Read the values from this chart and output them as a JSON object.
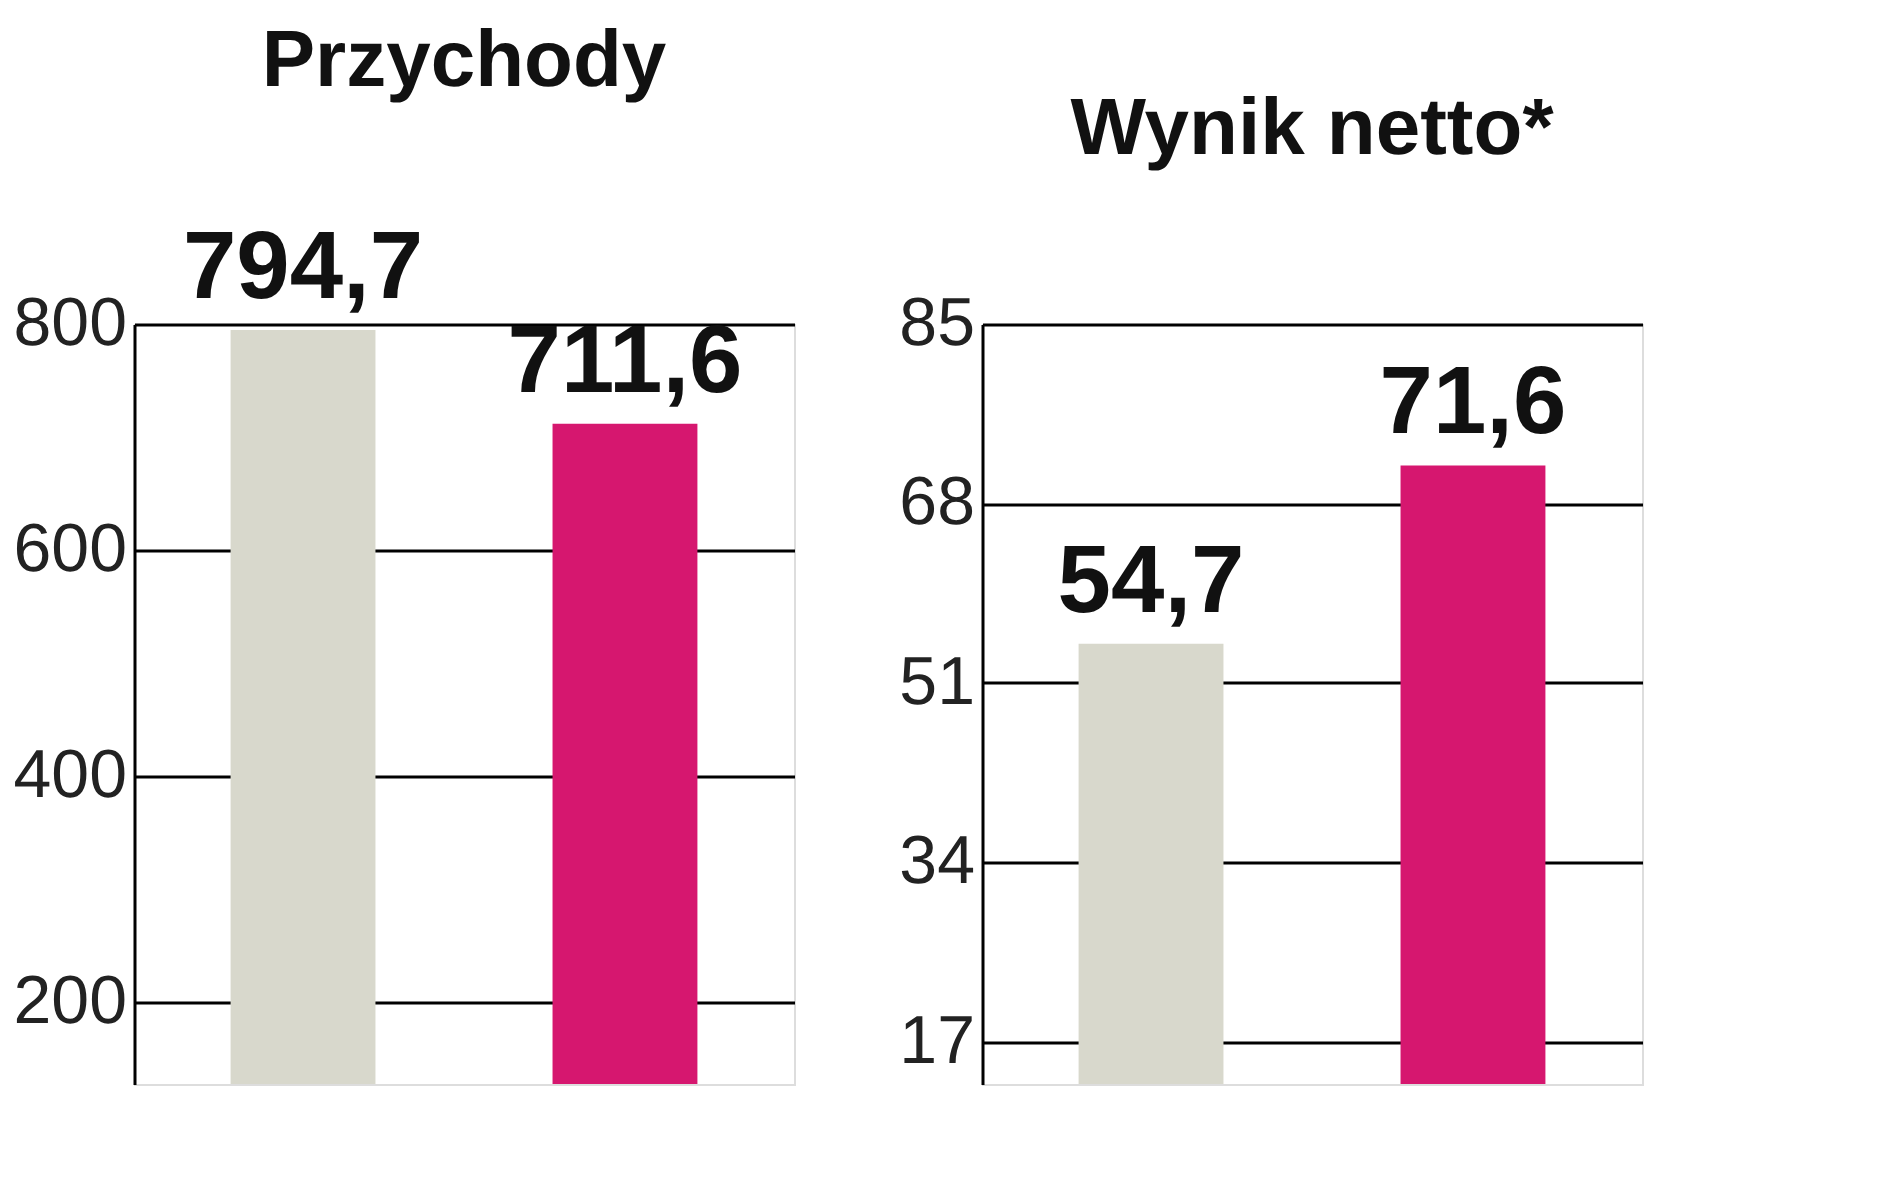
{
  "chart_data": [
    {
      "type": "bar",
      "title": "Przychody",
      "categories": [
        null,
        null
      ],
      "values": [
        794.7,
        711.6
      ],
      "colors": [
        "#d8d8cc",
        "#d6176f"
      ],
      "value_labels": [
        "794,7",
        "711,6"
      ],
      "ylim": [
        127,
        800
      ],
      "yticks": [
        200,
        400,
        600,
        800
      ],
      "grid": "y"
    },
    {
      "type": "bar",
      "title": "Wynik netto*",
      "categories": [
        null,
        null
      ],
      "values": [
        54.7,
        71.6
      ],
      "colors": [
        "#d8d8cc",
        "#d6176f"
      ],
      "value_labels": [
        "54,7",
        "71,6"
      ],
      "ylim": [
        13,
        85
      ],
      "yticks": [
        17,
        34,
        51,
        68,
        85
      ],
      "grid": "y"
    }
  ]
}
